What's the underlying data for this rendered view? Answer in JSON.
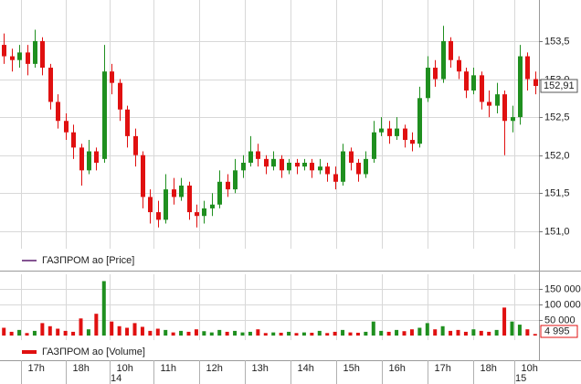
{
  "chart_data": [
    {
      "type": "candlestick",
      "legend": "ГАЗПРОМ ао [Price]",
      "legend_color": "#5a1a6e",
      "up_color": "#1f8f1f",
      "down_color": "#e01010",
      "grid": true,
      "ylim": [
        150.77,
        154.04
      ],
      "yticks": [
        {
          "value": 151.0,
          "label": "151,0"
        },
        {
          "value": 151.5,
          "label": "151,5"
        },
        {
          "value": 152.0,
          "label": "152,0"
        },
        {
          "value": 152.5,
          "label": "152,5"
        },
        {
          "value": 153.0,
          "label": "153,0"
        },
        {
          "value": 153.5,
          "label": "153,5"
        }
      ],
      "last_value": {
        "value": 152.91,
        "label": "152,91"
      },
      "open": [
        153.45,
        153.3,
        153.25,
        153.35,
        153.2,
        153.5,
        153.15,
        152.7,
        152.45,
        152.3,
        152.1,
        151.8,
        152.05,
        151.95,
        153.1,
        152.95,
        152.6,
        152.25,
        152.0,
        151.45,
        151.25,
        151.15,
        151.55,
        151.45,
        151.6,
        151.25,
        151.2,
        151.3,
        151.35,
        151.65,
        151.55,
        151.8,
        151.9,
        152.05,
        151.95,
        151.85,
        151.95,
        151.8,
        151.9,
        151.85,
        151.9,
        151.8,
        151.85,
        151.75,
        151.65,
        152.05,
        151.9,
        151.75,
        151.95,
        152.3,
        152.35,
        152.25,
        152.35,
        152.2,
        152.15,
        152.75,
        153.15,
        153.0,
        153.5,
        153.25,
        153.1,
        152.85,
        153.05,
        152.7,
        152.65,
        152.8,
        152.45,
        152.5,
        153.3,
        153.0
      ],
      "high": [
        153.6,
        153.4,
        153.45,
        153.45,
        153.65,
        153.55,
        153.2,
        152.8,
        152.55,
        152.4,
        152.15,
        152.2,
        152.1,
        153.45,
        153.2,
        153.0,
        152.65,
        152.35,
        152.05,
        151.55,
        151.4,
        151.75,
        151.7,
        151.7,
        151.65,
        151.35,
        151.4,
        151.5,
        151.8,
        151.75,
        151.95,
        152.0,
        152.25,
        152.15,
        152.0,
        152.05,
        152.0,
        151.95,
        151.95,
        151.95,
        151.95,
        151.95,
        151.9,
        151.85,
        152.15,
        152.1,
        151.95,
        152.05,
        152.45,
        152.5,
        152.45,
        152.5,
        152.4,
        152.3,
        152.9,
        153.3,
        153.25,
        153.7,
        153.55,
        153.3,
        153.15,
        153.15,
        153.1,
        152.85,
        152.95,
        152.85,
        152.65,
        153.45,
        153.35,
        153.1
      ],
      "low": [
        153.2,
        153.1,
        153.15,
        153.05,
        153.15,
        153.05,
        152.6,
        152.35,
        152.2,
        151.95,
        151.6,
        151.75,
        151.8,
        151.9,
        152.8,
        152.45,
        152.1,
        151.85,
        151.3,
        151.1,
        151.05,
        151.1,
        151.35,
        151.4,
        151.15,
        151.05,
        151.1,
        151.2,
        151.3,
        151.45,
        151.5,
        151.7,
        151.85,
        151.85,
        151.75,
        151.8,
        151.7,
        151.75,
        151.75,
        151.8,
        151.7,
        151.75,
        151.65,
        151.55,
        151.6,
        151.8,
        151.65,
        151.7,
        151.9,
        152.25,
        152.15,
        152.2,
        152.1,
        152.05,
        152.1,
        152.7,
        152.9,
        152.95,
        153.15,
        153.0,
        152.75,
        152.8,
        152.6,
        152.5,
        152.55,
        152.0,
        152.3,
        152.4,
        152.85,
        152.8
      ],
      "close": [
        153.3,
        153.25,
        153.35,
        153.2,
        153.5,
        153.15,
        152.7,
        152.45,
        152.3,
        152.1,
        151.8,
        152.05,
        151.9,
        153.1,
        152.95,
        152.6,
        152.25,
        152.0,
        151.45,
        151.25,
        151.15,
        151.55,
        151.45,
        151.6,
        151.25,
        151.2,
        151.3,
        151.35,
        151.65,
        151.55,
        151.8,
        151.9,
        152.05,
        151.95,
        151.85,
        151.95,
        151.8,
        151.9,
        151.85,
        151.9,
        151.8,
        151.85,
        151.75,
        151.65,
        152.05,
        151.9,
        151.75,
        151.95,
        152.3,
        152.35,
        152.25,
        152.35,
        152.2,
        152.15,
        152.75,
        153.15,
        153.0,
        153.5,
        153.25,
        153.1,
        152.85,
        153.05,
        152.7,
        152.65,
        152.8,
        152.45,
        152.5,
        153.3,
        153.0,
        152.91
      ]
    },
    {
      "type": "bar",
      "legend": "ГАЗПРОМ ао [Volume]",
      "legend_color": "#e01010",
      "grid": true,
      "ylim": [
        0,
        197000
      ],
      "yticks": [
        {
          "value": 50000,
          "label": "50 000"
        },
        {
          "value": 100000,
          "label": "100 000"
        },
        {
          "value": 150000,
          "label": "150 000"
        }
      ],
      "last_value": {
        "value": 4995,
        "label": "4 995"
      },
      "values": [
        25000,
        12000,
        18000,
        8000,
        15000,
        40000,
        30000,
        22000,
        15000,
        12000,
        55000,
        20000,
        70000,
        175000,
        45000,
        30000,
        25000,
        40000,
        28000,
        15000,
        22000,
        18000,
        10000,
        15000,
        12000,
        20000,
        14000,
        10000,
        18000,
        12000,
        15000,
        10000,
        12000,
        20000,
        8000,
        10000,
        9000,
        12000,
        8000,
        10000,
        9000,
        15000,
        8000,
        12000,
        18000,
        10000,
        9000,
        12000,
        45000,
        15000,
        12000,
        18000,
        14000,
        20000,
        25000,
        40000,
        20000,
        30000,
        15000,
        18000,
        12000,
        20000,
        15000,
        12000,
        18000,
        90000,
        45000,
        35000,
        20000,
        4995
      ],
      "xlim": [
        0,
        70
      ],
      "xticks": [
        {
          "value": 2.7,
          "label": "17h"
        },
        {
          "value": 8.5,
          "label": "18h"
        },
        {
          "value": 14.2,
          "label": "10h"
        },
        {
          "value": 19.9,
          "label": "11h"
        },
        {
          "value": 25.9,
          "label": "12h"
        },
        {
          "value": 31.8,
          "label": "13h"
        },
        {
          "value": 37.7,
          "label": "14h"
        },
        {
          "value": 43.7,
          "label": "15h"
        },
        {
          "value": 49.6,
          "label": "16h"
        },
        {
          "value": 55.5,
          "label": "17h"
        },
        {
          "value": 61.5,
          "label": "18h"
        },
        {
          "value": 66.8,
          "label": "10h"
        }
      ],
      "date_ticks": [
        {
          "value": 14.2,
          "label": "14"
        },
        {
          "value": 66.8,
          "label": "15"
        }
      ]
    }
  ]
}
